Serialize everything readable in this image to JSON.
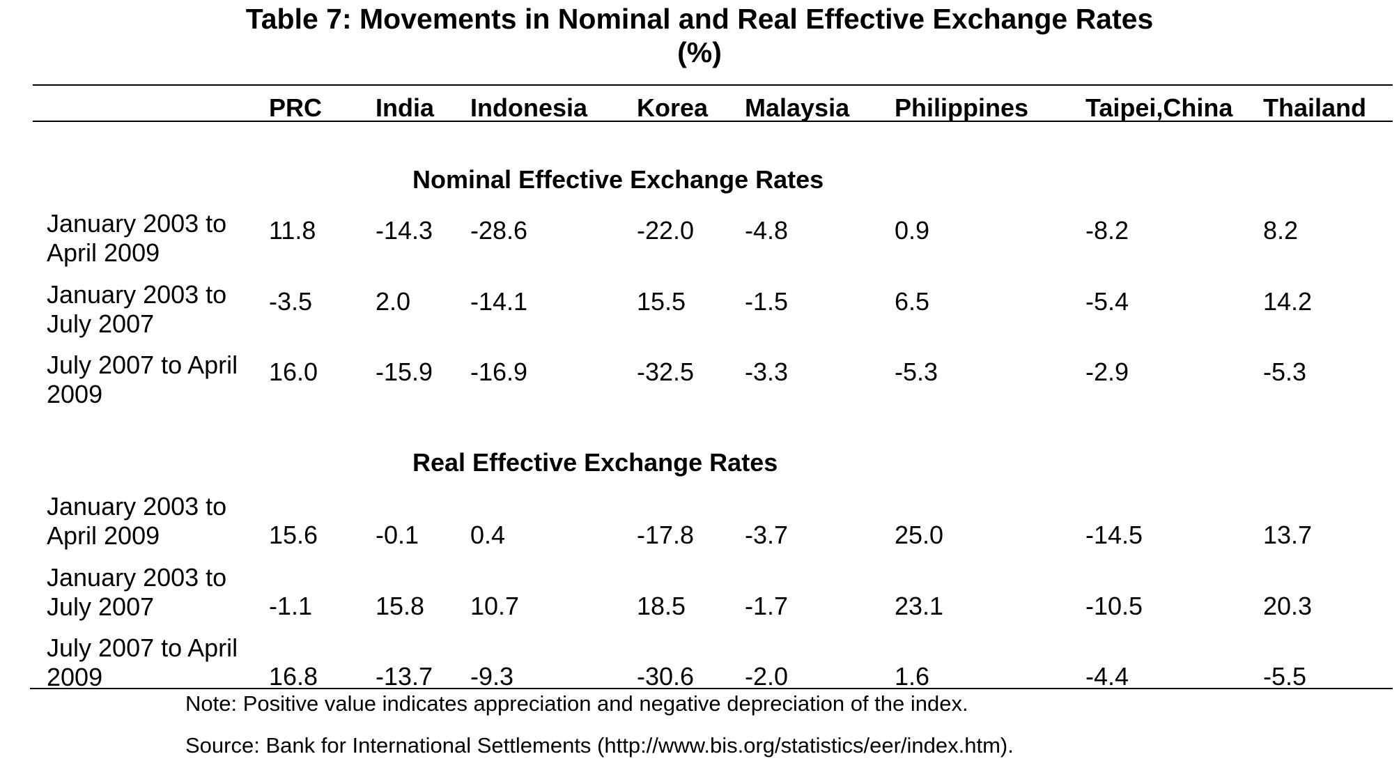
{
  "title": "Table 7: Movements in Nominal and Real Effective Exchange Rates",
  "subtitle": "(%)",
  "columns": [
    "PRC",
    "India",
    "Indonesia",
    "Korea",
    "Malaysia",
    "Philippines",
    "Taipei,China",
    "Thailand"
  ],
  "sections": [
    {
      "heading": "Nominal Effective Exchange Rates",
      "rows": [
        {
          "label": "January 2003 to April 2009",
          "values": [
            "11.8",
            "-14.3",
            "-28.6",
            "-22.0",
            "-4.8",
            "0.9",
            "-8.2",
            "8.2"
          ]
        },
        {
          "label": "January 2003 to July 2007",
          "values": [
            "-3.5",
            "2.0",
            "-14.1",
            "15.5",
            "-1.5",
            "6.5",
            "-5.4",
            "14.2"
          ]
        },
        {
          "label": "July 2007 to April 2009",
          "values": [
            "16.0",
            "-15.9",
            "-16.9",
            "-32.5",
            "-3.3",
            "-5.3",
            "-2.9",
            "-5.3"
          ]
        }
      ]
    },
    {
      "heading": "Real Effective Exchange Rates",
      "rows": [
        {
          "label": "January 2003 to April 2009",
          "values": [
            "15.6",
            "-0.1",
            "0.4",
            "-17.8",
            "-3.7",
            "25.0",
            "-14.5",
            "13.7"
          ]
        },
        {
          "label": "January 2003 to July 2007",
          "values": [
            "-1.1",
            "15.8",
            "10.7",
            "18.5",
            "-1.7",
            "23.1",
            "-10.5",
            "20.3"
          ]
        },
        {
          "label": "July 2007 to April 2009",
          "values": [
            "16.8",
            "-13.7",
            "-9.3",
            "-30.6",
            "-2.0",
            "1.6",
            "-4.4",
            "-5.5"
          ]
        }
      ]
    }
  ],
  "note": "Note: Positive value indicates appreciation and negative depreciation of the index.",
  "source": "Source: Bank for International Settlements (http://www.bis.org/statistics/eer/index.htm)."
}
